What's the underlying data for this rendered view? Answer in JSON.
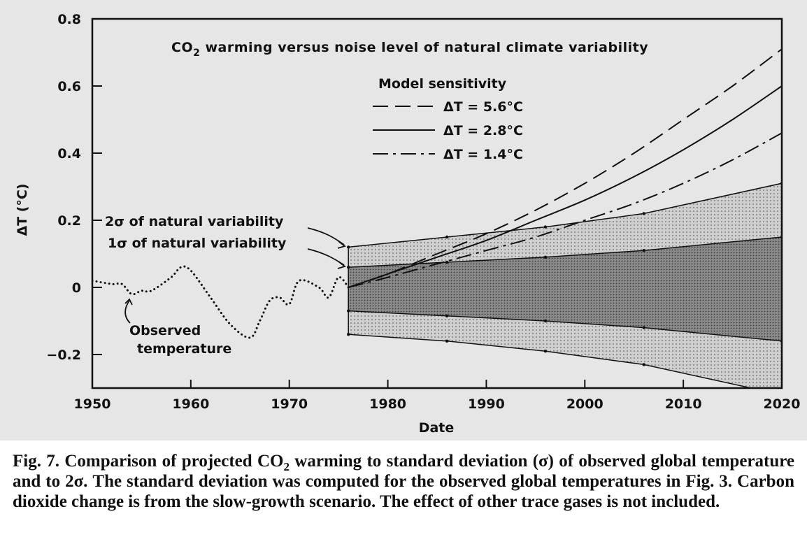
{
  "chart_data": {
    "type": "line",
    "title_prefix": "CO",
    "title_sub": "2",
    "title_suffix": " warming versus noise level of natural climate variability",
    "xlabel": "Date",
    "ylabel": "ΔT (°C)",
    "xlim": [
      1950,
      2020
    ],
    "ylim": [
      -0.3,
      0.8
    ],
    "x_ticks": [
      1950,
      1960,
      1970,
      1980,
      1990,
      2000,
      2010,
      2020
    ],
    "x_tick_labels": [
      "1950",
      "1960",
      "1970",
      "1980",
      "1990",
      "2000",
      "2010",
      "2020"
    ],
    "y_ticks": [
      -0.2,
      0,
      0.2,
      0.4,
      0.6,
      0.8
    ],
    "y_tick_labels": [
      "−0.2",
      "0",
      "0.2",
      "0.4",
      "0.6",
      "0.8"
    ],
    "legend_title": "Model sensitivity",
    "legend_position": "top-center",
    "series": [
      {
        "name": "ΔT = 5.6°C",
        "style": "dashed",
        "x": [
          1976,
          1980,
          1985,
          1990,
          1995,
          2000,
          2005,
          2010,
          2015,
          2020
        ],
        "y": [
          0.0,
          0.04,
          0.1,
          0.16,
          0.23,
          0.31,
          0.4,
          0.5,
          0.6,
          0.71
        ]
      },
      {
        "name": "ΔT = 2.8°C",
        "style": "solid",
        "x": [
          1976,
          1980,
          1985,
          1990,
          1995,
          2000,
          2005,
          2010,
          2015,
          2020
        ],
        "y": [
          0.0,
          0.04,
          0.09,
          0.14,
          0.2,
          0.26,
          0.33,
          0.41,
          0.5,
          0.6
        ]
      },
      {
        "name": "ΔT = 1.4°C",
        "style": "dash-dot",
        "x": [
          1976,
          1980,
          1985,
          1990,
          1995,
          2000,
          2005,
          2010,
          2015,
          2020
        ],
        "y": [
          0.0,
          0.03,
          0.07,
          0.11,
          0.15,
          0.2,
          0.25,
          0.31,
          0.38,
          0.46
        ]
      }
    ],
    "observed": {
      "label_line1": "Observed",
      "label_line2": "temperature",
      "style": "dotted",
      "x": [
        1950,
        1952,
        1953,
        1954,
        1955,
        1956,
        1958,
        1959,
        1960,
        1962,
        1964,
        1966,
        1967,
        1968,
        1969,
        1970,
        1971,
        1973,
        1974,
        1975,
        1976
      ],
      "y": [
        0.02,
        0.01,
        0.01,
        -0.02,
        -0.01,
        -0.01,
        0.03,
        0.06,
        0.05,
        -0.03,
        -0.11,
        -0.15,
        -0.1,
        -0.04,
        -0.03,
        -0.05,
        0.02,
        0.0,
        -0.03,
        0.03,
        0.0
      ]
    },
    "bands": [
      {
        "name": "2σ of natural variability",
        "shade": "light-stipple",
        "x": [
          1976,
          1986,
          1996,
          2006,
          2020
        ],
        "upper": [
          0.12,
          0.15,
          0.18,
          0.22,
          0.31
        ],
        "lower": [
          -0.14,
          -0.16,
          -0.19,
          -0.23,
          -0.32
        ]
      },
      {
        "name": "1σ of natural variability",
        "shade": "dark-stipple",
        "x": [
          1976,
          1986,
          1996,
          2006,
          2020
        ],
        "upper": [
          0.06,
          0.075,
          0.09,
          0.11,
          0.15
        ],
        "lower": [
          -0.07,
          -0.085,
          -0.1,
          -0.12,
          -0.16
        ]
      }
    ]
  },
  "caption": {
    "part1": "Fig. 7. Comparison of projected CO",
    "sub": "2",
    "part2": " warming to standard deviation (σ) of observed global temperature and to 2σ. The standard deviation was computed for the observed global temperatures in Fig. 3. Carbon dioxide change is from the slow-growth scenario. The effect of other trace gases is not included."
  }
}
